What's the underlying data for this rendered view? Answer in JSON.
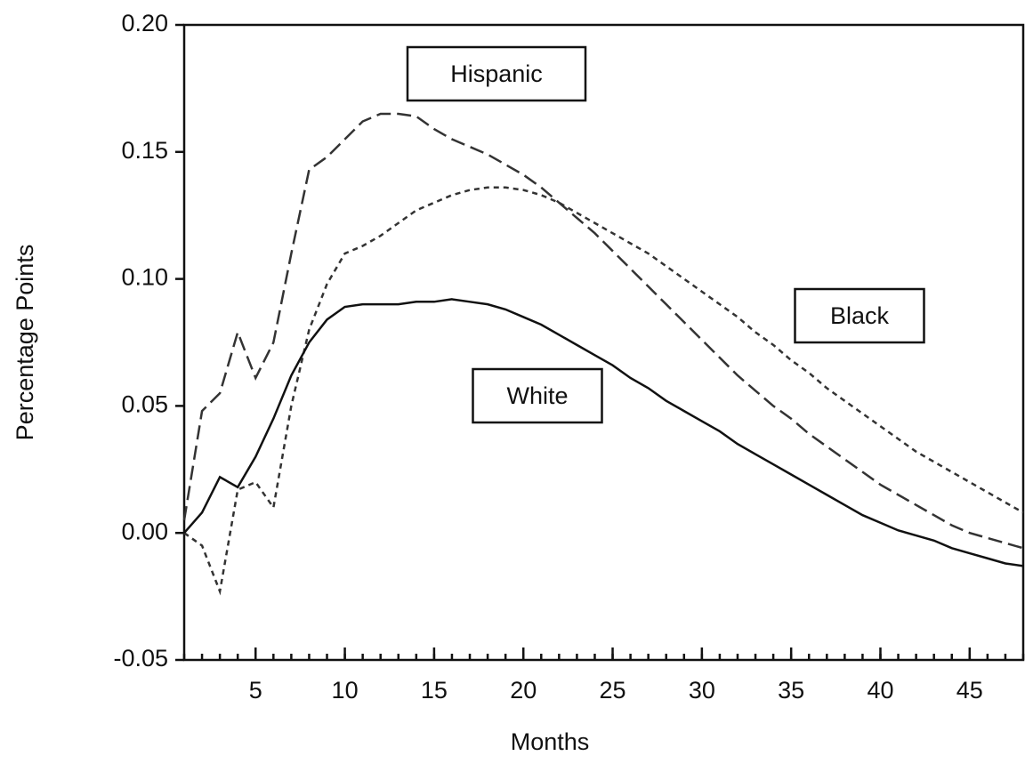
{
  "chart_data": {
    "type": "line",
    "x_label": "Months",
    "y_label": "Percentage Points",
    "x": [
      1,
      2,
      3,
      4,
      5,
      6,
      7,
      8,
      9,
      10,
      11,
      12,
      13,
      14,
      15,
      16,
      17,
      18,
      19,
      20,
      21,
      22,
      23,
      24,
      25,
      26,
      27,
      28,
      29,
      30,
      31,
      32,
      33,
      34,
      35,
      36,
      37,
      38,
      39,
      40,
      41,
      42,
      43,
      44,
      45,
      46,
      47,
      48
    ],
    "xlim": [
      1,
      48
    ],
    "xticks": [
      5,
      10,
      15,
      20,
      25,
      30,
      35,
      40,
      45
    ],
    "ylim": [
      -0.05,
      0.2
    ],
    "yticks": [
      {
        "value": -0.05,
        "label": "-0.05"
      },
      {
        "value": 0,
        "label": "0.00"
      },
      {
        "value": 0.05,
        "label": "0.05"
      },
      {
        "value": 0.1,
        "label": "0.10"
      },
      {
        "value": 0.15,
        "label": "0.15"
      },
      {
        "value": 0.2,
        "label": "0.20"
      }
    ],
    "grid": false,
    "series": [
      {
        "name": "Hispanic",
        "color": "#333333",
        "line_style": "dashed",
        "values": [
          0.005,
          0.048,
          0.055,
          0.079,
          0.061,
          0.075,
          0.11,
          0.143,
          0.148,
          0.155,
          0.162,
          0.165,
          0.165,
          0.164,
          0.159,
          0.155,
          0.152,
          0.149,
          0.145,
          0.141,
          0.136,
          0.13,
          0.124,
          0.118,
          0.111,
          0.104,
          0.097,
          0.09,
          0.083,
          0.076,
          0.069,
          0.062,
          0.056,
          0.05,
          0.045,
          0.039,
          0.034,
          0.029,
          0.024,
          0.019,
          0.015,
          0.011,
          0.007,
          0.003,
          0.0,
          -0.002,
          -0.004,
          -0.006
        ]
      },
      {
        "name": "Black",
        "color": "#333333",
        "line_style": "dotted",
        "values": [
          0.0,
          -0.005,
          -0.023,
          0.017,
          0.02,
          0.01,
          0.05,
          0.08,
          0.098,
          0.11,
          0.113,
          0.117,
          0.122,
          0.127,
          0.13,
          0.133,
          0.135,
          0.136,
          0.136,
          0.135,
          0.133,
          0.13,
          0.126,
          0.122,
          0.118,
          0.114,
          0.11,
          0.105,
          0.1,
          0.095,
          0.09,
          0.085,
          0.079,
          0.074,
          0.068,
          0.063,
          0.057,
          0.052,
          0.047,
          0.042,
          0.037,
          0.032,
          0.028,
          0.024,
          0.02,
          0.016,
          0.012,
          0.008
        ]
      },
      {
        "name": "White",
        "color": "#111111",
        "line_style": "solid",
        "values": [
          0.0,
          0.008,
          0.022,
          0.018,
          0.03,
          0.045,
          0.062,
          0.075,
          0.084,
          0.089,
          0.09,
          0.09,
          0.09,
          0.091,
          0.091,
          0.092,
          0.091,
          0.09,
          0.088,
          0.085,
          0.082,
          0.078,
          0.074,
          0.07,
          0.066,
          0.061,
          0.057,
          0.052,
          0.048,
          0.044,
          0.04,
          0.035,
          0.031,
          0.027,
          0.023,
          0.019,
          0.015,
          0.011,
          0.007,
          0.004,
          0.001,
          -0.001,
          -0.003,
          -0.006,
          -0.008,
          -0.01,
          -0.012,
          -0.013
        ]
      }
    ]
  }
}
